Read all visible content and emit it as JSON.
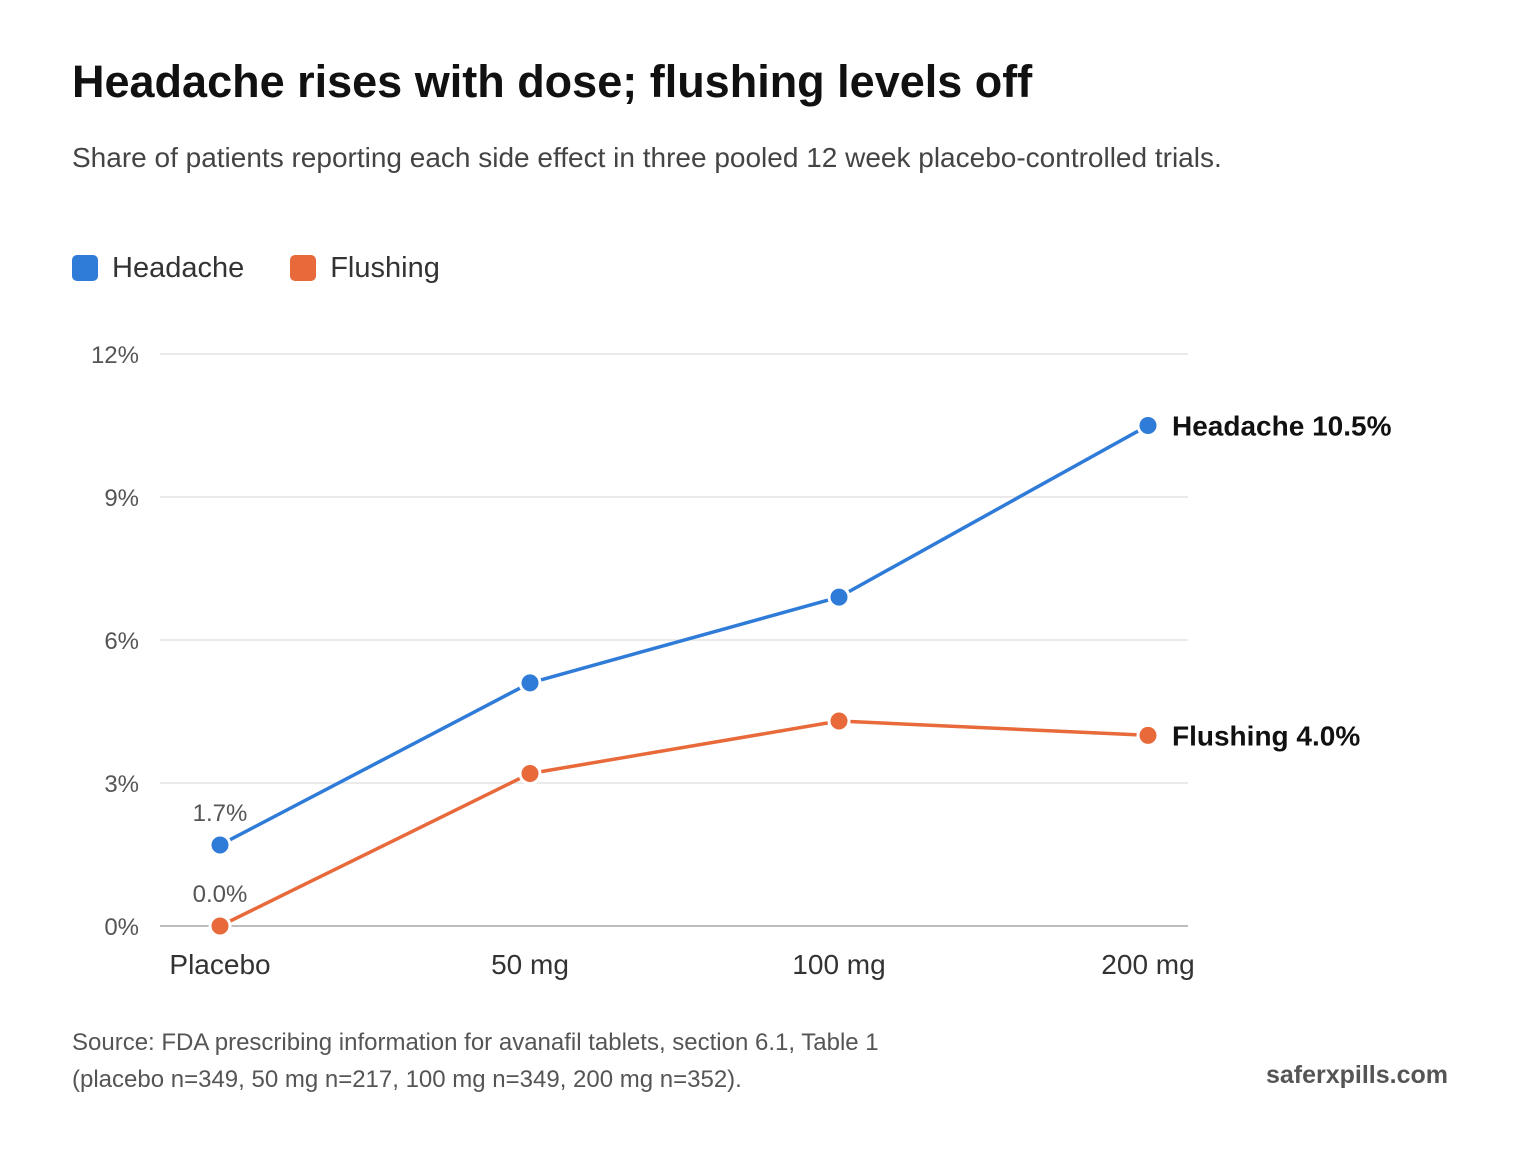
{
  "title": "Headache rises with dose; flushing levels off",
  "subtitle": "Share of patients reporting each side effect in three pooled 12 week placebo-controlled trials.",
  "source": {
    "line1": "Source: FDA prescribing information for avanafil tablets, section 6.1, Table 1",
    "line2": "(placebo n=349, 50 mg n=217, 100 mg n=349, 200 mg n=352)."
  },
  "brand": "saferxpills.com",
  "colors": {
    "headache": "#2f7bd8",
    "flushing": "#e8693a"
  },
  "legend": [
    {
      "label": "Headache",
      "color": "#2f7bd8"
    },
    {
      "label": "Flushing",
      "color": "#e8693a"
    }
  ],
  "chart_data": {
    "type": "line",
    "categories": [
      "Placebo",
      "50 mg",
      "100 mg",
      "200 mg"
    ],
    "ylim": [
      0,
      12
    ],
    "yticks": [
      0,
      3,
      6,
      9,
      12
    ],
    "ytick_labels": [
      "0%",
      "3%",
      "6%",
      "9%",
      "12%"
    ],
    "grid": true,
    "legend_position": "top-left",
    "series": [
      {
        "name": "Headache",
        "color": "#2f7bd8",
        "values": [
          1.7,
          5.1,
          6.9,
          10.5
        ],
        "start_label": "1.7%",
        "end_label": "Headache 10.5%"
      },
      {
        "name": "Flushing",
        "color": "#e8693a",
        "values": [
          0.0,
          3.2,
          4.3,
          4.0
        ],
        "start_label": "0.0%",
        "end_label": "Flushing 4.0%"
      }
    ]
  }
}
